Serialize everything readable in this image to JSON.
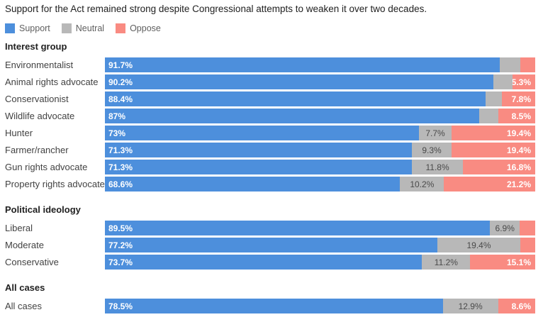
{
  "title": "Support for the Act remained strong despite Congressional attempts to weaken it over two decades.",
  "colors": {
    "support": "#4d8fdc",
    "neutral": "#b8b8b8",
    "oppose": "#f98b82"
  },
  "legend": [
    {
      "key": "support",
      "label": "Support",
      "color": "#4d8fdc"
    },
    {
      "key": "neutral",
      "label": "Neutral",
      "color": "#b8b8b8"
    },
    {
      "key": "oppose",
      "label": "Oppose",
      "color": "#f98b82"
    }
  ],
  "sections": [
    {
      "header": "Interest group",
      "rows": [
        {
          "label": "Environmentalist",
          "values": [
            91.7,
            4.9,
            3.4
          ],
          "labels": [
            "91.7%",
            "",
            ""
          ]
        },
        {
          "label": "Animal rights advocate",
          "values": [
            90.2,
            4.5,
            5.3
          ],
          "labels": [
            "90.2%",
            "",
            "5.3%"
          ]
        },
        {
          "label": "Conservationist",
          "values": [
            88.4,
            3.8,
            7.8
          ],
          "labels": [
            "88.4%",
            "",
            "7.8%"
          ]
        },
        {
          "label": "Wildlife advocate",
          "values": [
            87.0,
            4.5,
            8.5
          ],
          "labels": [
            "87%",
            "",
            "8.5%"
          ]
        },
        {
          "label": "Hunter",
          "values": [
            73.0,
            7.7,
            19.4
          ],
          "labels": [
            "73%",
            "7.7%",
            "19.4%"
          ]
        },
        {
          "label": "Farmer/rancher",
          "values": [
            71.3,
            9.3,
            19.4
          ],
          "labels": [
            "71.3%",
            "9.3%",
            "19.4%"
          ]
        },
        {
          "label": "Gun rights advocate",
          "values": [
            71.3,
            11.8,
            16.8
          ],
          "labels": [
            "71.3%",
            "11.8%",
            "16.8%"
          ]
        },
        {
          "label": "Property rights advocate",
          "values": [
            68.6,
            10.2,
            21.2
          ],
          "labels": [
            "68.6%",
            "10.2%",
            "21.2%"
          ]
        }
      ]
    },
    {
      "header": "Political ideology",
      "rows": [
        {
          "label": "Liberal",
          "values": [
            89.5,
            6.9,
            3.6
          ],
          "labels": [
            "89.5%",
            "6.9%",
            ""
          ]
        },
        {
          "label": "Moderate",
          "values": [
            77.2,
            19.4,
            3.4
          ],
          "labels": [
            "77.2%",
            "19.4%",
            ""
          ]
        },
        {
          "label": "Conservative",
          "values": [
            73.7,
            11.2,
            15.1
          ],
          "labels": [
            "73.7%",
            "11.2%",
            "15.1%"
          ]
        }
      ]
    },
    {
      "header": "All cases",
      "rows": [
        {
          "label": "All cases",
          "values": [
            78.5,
            12.9,
            8.6
          ],
          "labels": [
            "78.5%",
            "12.9%",
            "8.6%"
          ]
        }
      ]
    }
  ],
  "chart_data": {
    "type": "bar",
    "stacked": true,
    "orientation": "horizontal",
    "unit": "percent",
    "title": "Support for the Act remained strong despite Congressional attempts to weaken it over two decades.",
    "legend_position": "top",
    "series_names": [
      "Support",
      "Neutral",
      "Oppose"
    ],
    "xlim": [
      0,
      100
    ],
    "grid": false,
    "groups": [
      {
        "name": "Interest group",
        "categories": [
          "Environmentalist",
          "Animal rights advocate",
          "Conservationist",
          "Wildlife advocate",
          "Hunter",
          "Farmer/rancher",
          "Gun rights advocate",
          "Property rights advocate"
        ],
        "series": [
          {
            "name": "Support",
            "values": [
              91.7,
              90.2,
              88.4,
              87.0,
              73.0,
              71.3,
              71.3,
              68.6
            ]
          },
          {
            "name": "Neutral",
            "values": [
              4.9,
              4.5,
              3.8,
              4.5,
              7.7,
              9.3,
              11.8,
              10.2
            ]
          },
          {
            "name": "Oppose",
            "values": [
              3.4,
              5.3,
              7.8,
              8.5,
              19.4,
              19.4,
              16.8,
              21.2
            ]
          }
        ]
      },
      {
        "name": "Political ideology",
        "categories": [
          "Liberal",
          "Moderate",
          "Conservative"
        ],
        "series": [
          {
            "name": "Support",
            "values": [
              89.5,
              77.2,
              73.7
            ]
          },
          {
            "name": "Neutral",
            "values": [
              6.9,
              19.4,
              11.2
            ]
          },
          {
            "name": "Oppose",
            "values": [
              3.6,
              3.4,
              15.1
            ]
          }
        ]
      },
      {
        "name": "All cases",
        "categories": [
          "All cases"
        ],
        "series": [
          {
            "name": "Support",
            "values": [
              78.5
            ]
          },
          {
            "name": "Neutral",
            "values": [
              12.9
            ]
          },
          {
            "name": "Oppose",
            "values": [
              8.6
            ]
          }
        ]
      }
    ]
  }
}
